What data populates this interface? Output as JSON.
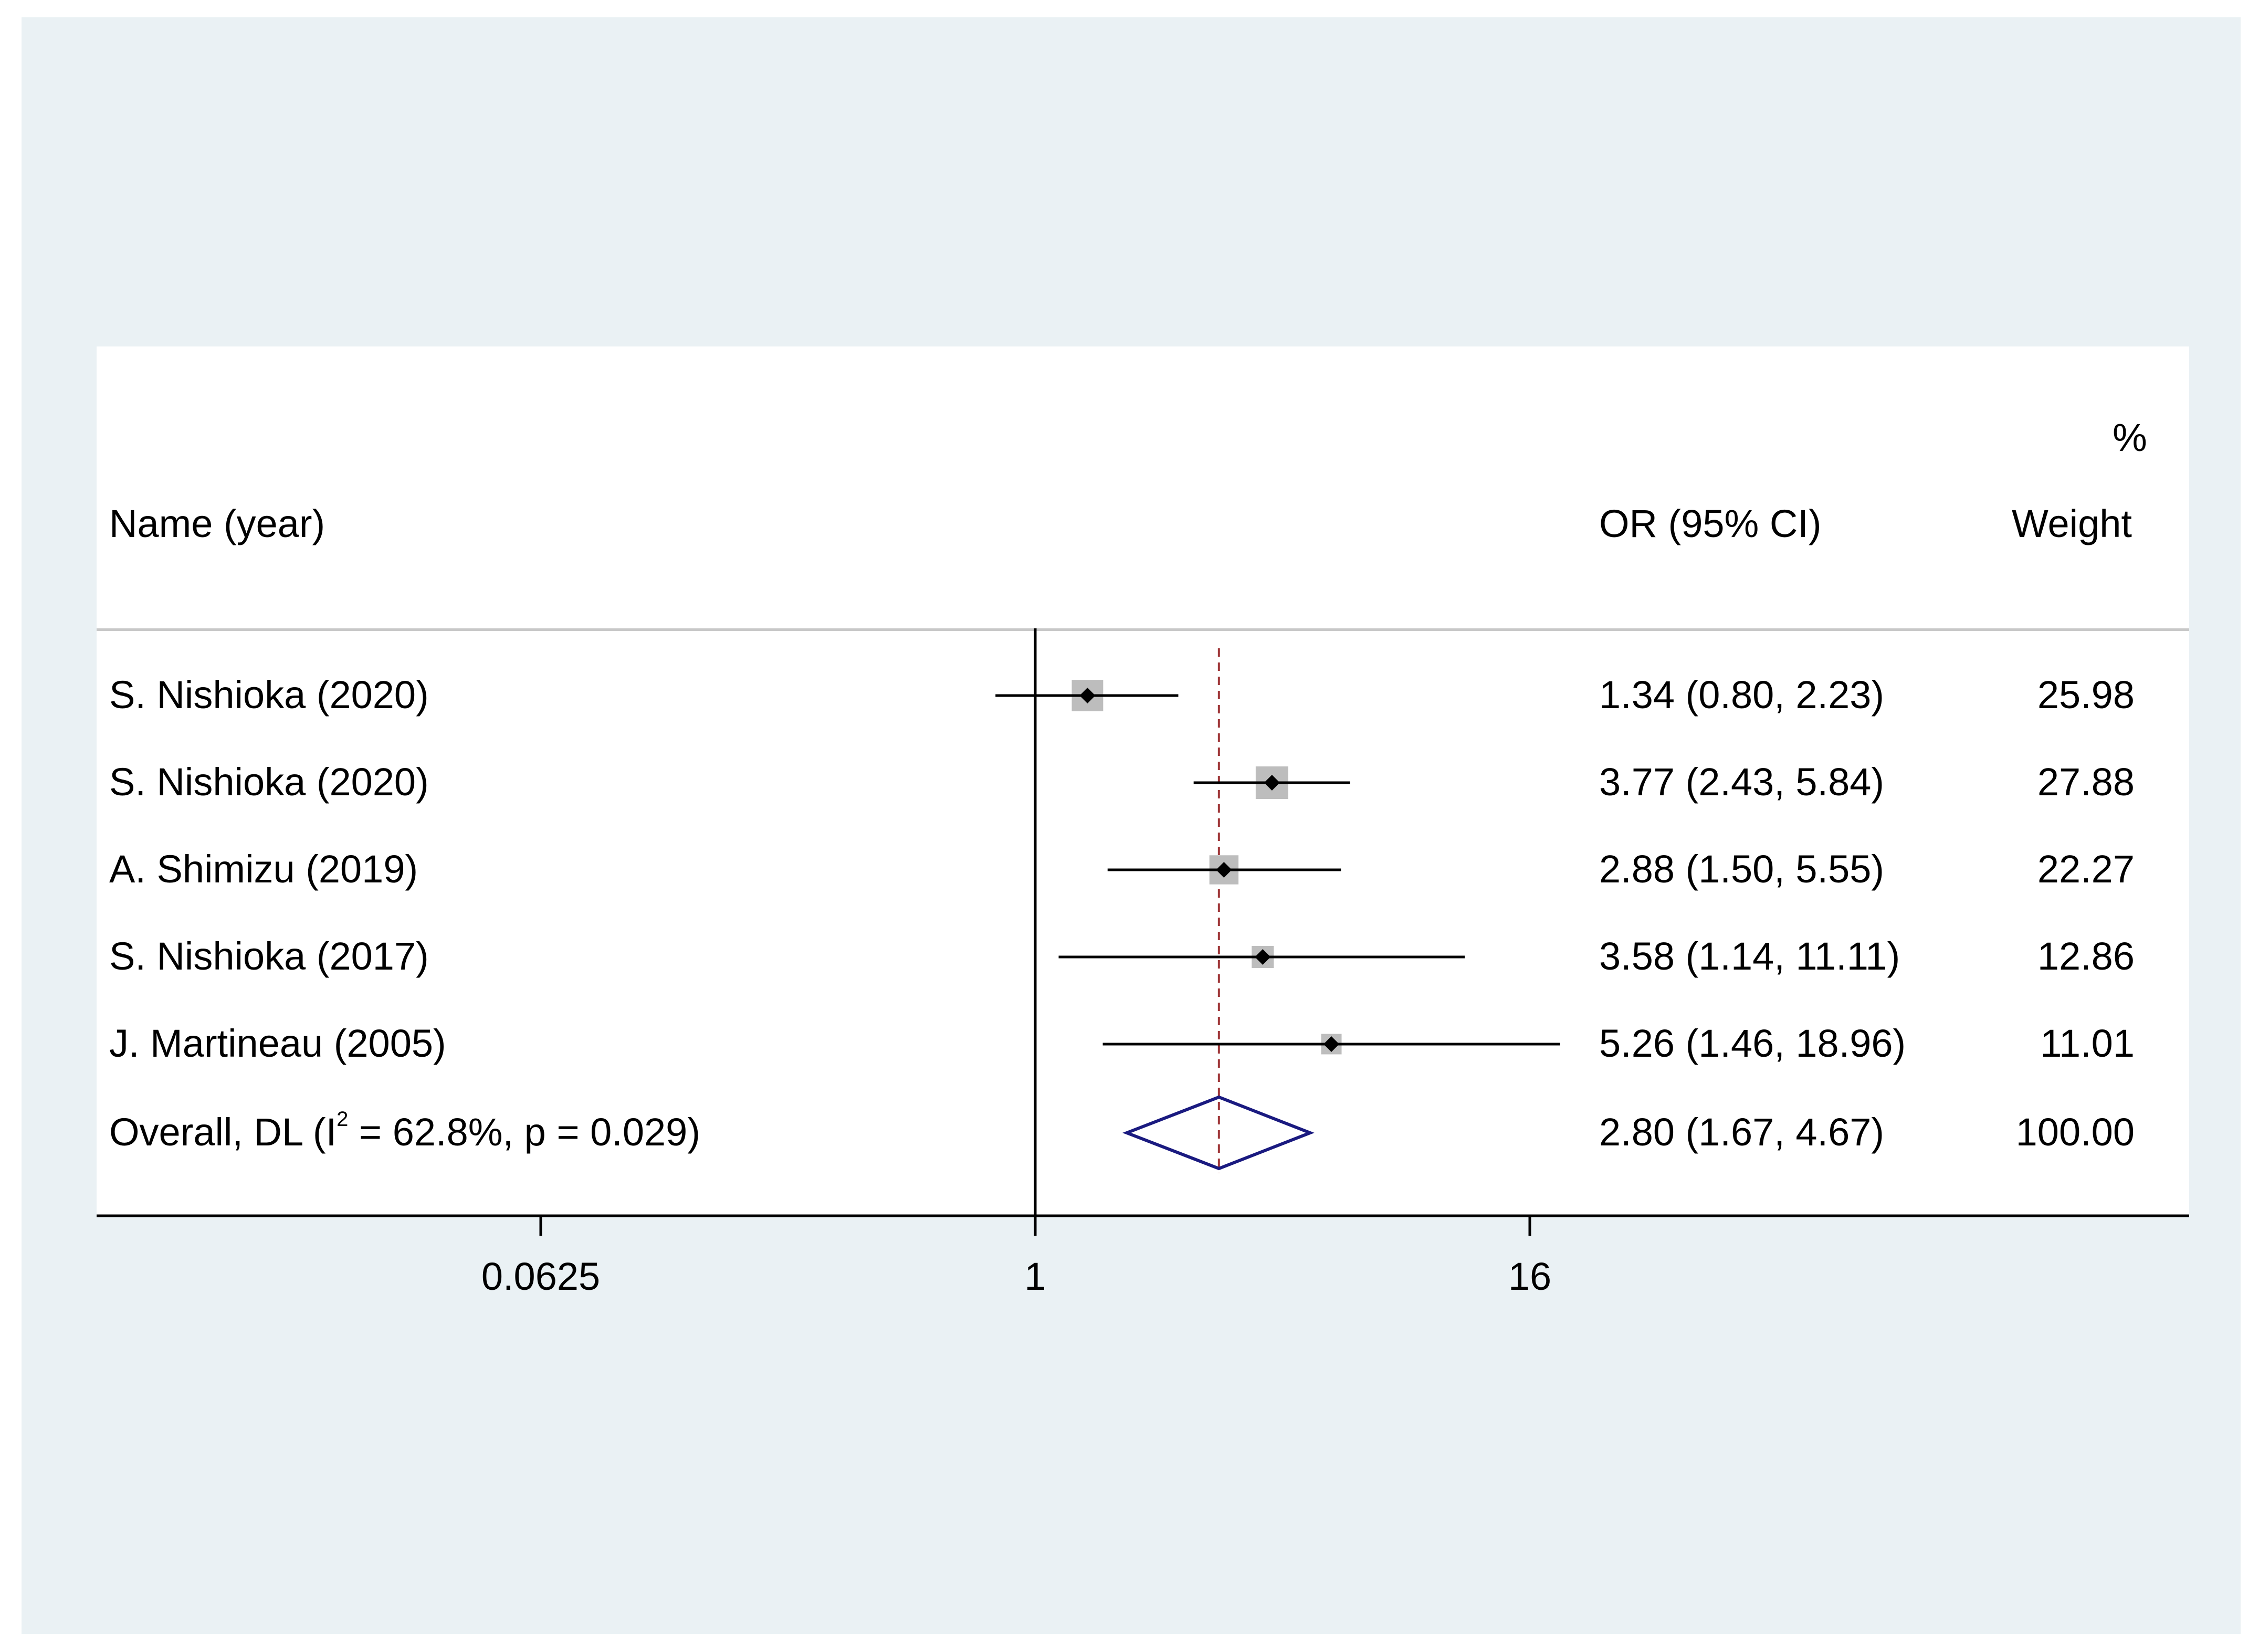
{
  "chart_data": {
    "type": "forest",
    "headers": {
      "study": "Name (year)",
      "estimate": "OR (95% CI)",
      "weight_top": "%",
      "weight": "Weight"
    },
    "scale": "log2",
    "xticks": [
      0.0625,
      1,
      16
    ],
    "xtick_labels": [
      "0.0625",
      "1",
      "16"
    ],
    "null_line": 1,
    "overall_line": 2.8,
    "studies": [
      {
        "name": "S. Nishioka (2020)",
        "or": 1.34,
        "lo": 0.8,
        "hi": 2.23,
        "ci_text": "1.34 (0.80, 2.23)",
        "weight": "25.98"
      },
      {
        "name": "S. Nishioka (2020)",
        "or": 3.77,
        "lo": 2.43,
        "hi": 5.84,
        "ci_text": "3.77 (2.43, 5.84)",
        "weight": "27.88"
      },
      {
        "name": "A. Shimizu (2019)",
        "or": 2.88,
        "lo": 1.5,
        "hi": 5.55,
        "ci_text": "2.88 (1.50, 5.55)",
        "weight": "22.27"
      },
      {
        "name": "S. Nishioka (2017)",
        "or": 3.58,
        "lo": 1.14,
        "hi": 11.11,
        "ci_text": "3.58 (1.14, 11.11)",
        "weight": "12.86"
      },
      {
        "name": "J. Martineau (2005)",
        "or": 5.26,
        "lo": 1.46,
        "hi": 18.96,
        "ci_text": "5.26 (1.46, 18.96)",
        "weight": "11.01"
      }
    ],
    "overall": {
      "label_prefix": "Overall, DL (I",
      "label_sup": "2",
      "label_suffix": " = 62.8%, p = 0.029)",
      "or": 2.8,
      "lo": 1.67,
      "hi": 4.67,
      "ci_text": "2.80 (1.67, 4.67)",
      "weight": "100.00"
    },
    "colors": {
      "box": "#bdbdbd",
      "point": "#000000",
      "ci": "#000000",
      "diamond": "#1a1a80",
      "overall_line": "#a0383a",
      "background": "#eaf1f4"
    }
  }
}
